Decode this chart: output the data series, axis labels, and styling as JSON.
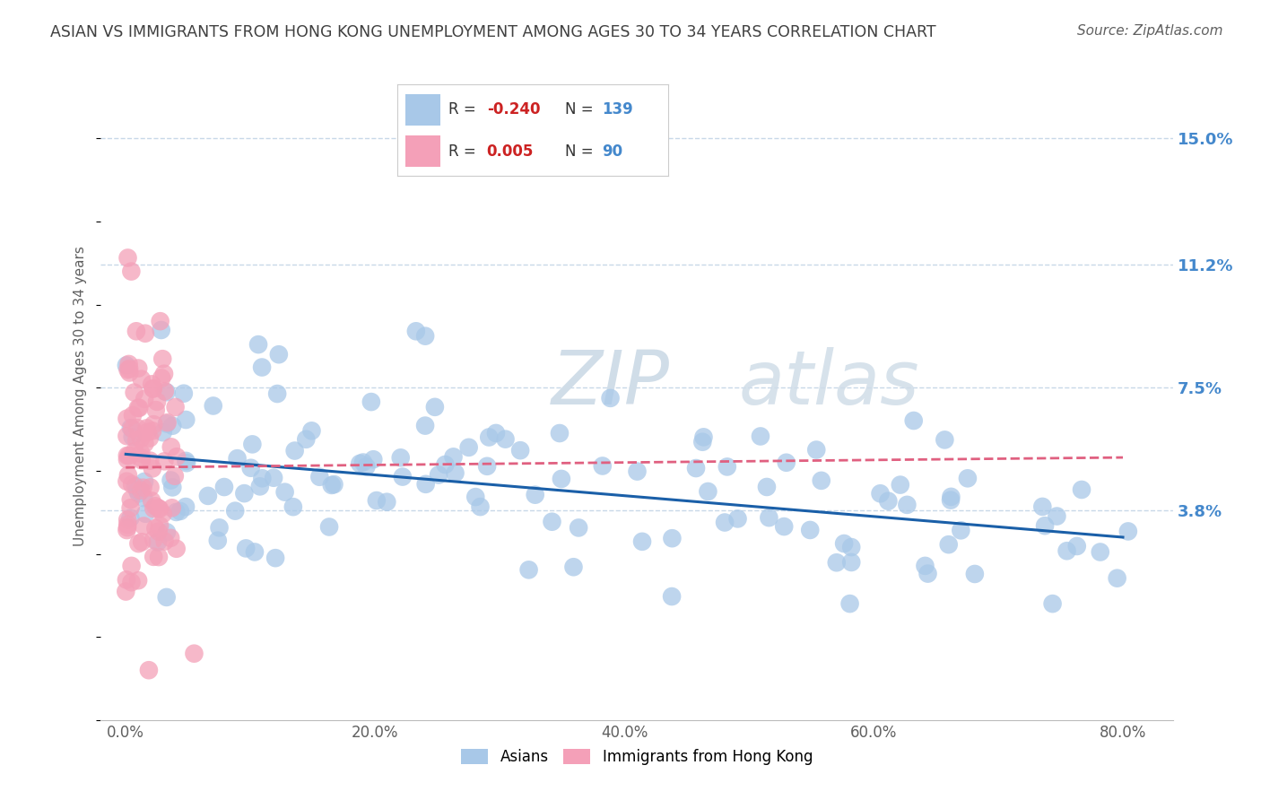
{
  "title": "ASIAN VS IMMIGRANTS FROM HONG KONG UNEMPLOYMENT AMONG AGES 30 TO 34 YEARS CORRELATION CHART",
  "source": "Source: ZipAtlas.com",
  "ylabel": "Unemployment Among Ages 30 to 34 years",
  "xlabel_ticks": [
    "0.0%",
    "20.0%",
    "40.0%",
    "60.0%",
    "80.0%"
  ],
  "xlabel_vals": [
    0.0,
    20.0,
    40.0,
    60.0,
    80.0
  ],
  "yright_ticks": [
    "3.8%",
    "7.5%",
    "11.2%",
    "15.0%"
  ],
  "yright_vals": [
    3.8,
    7.5,
    11.2,
    15.0
  ],
  "xlim": [
    -2,
    84
  ],
  "ylim": [
    -2.5,
    17.0
  ],
  "blue_color": "#a8c8e8",
  "pink_color": "#f4a0b8",
  "blue_line_color": "#1a5fa8",
  "pink_line_color": "#e06080",
  "grid_color": "#c8d8e8",
  "background_color": "#ffffff",
  "title_color": "#404040",
  "source_color": "#606060",
  "axis_label_color": "#606060",
  "right_tick_color": "#4488cc",
  "n_color": "#4488cc",
  "r_value_color": "#cc2222",
  "watermark_color": "#d0dde8",
  "blue_R": -0.24,
  "pink_R": 0.005,
  "blue_N": 139,
  "pink_N": 90,
  "blue_line_x": [
    0,
    80
  ],
  "blue_line_y": [
    5.5,
    3.0
  ],
  "pink_line_x": [
    0,
    80
  ],
  "pink_line_y": [
    5.1,
    5.4
  ]
}
